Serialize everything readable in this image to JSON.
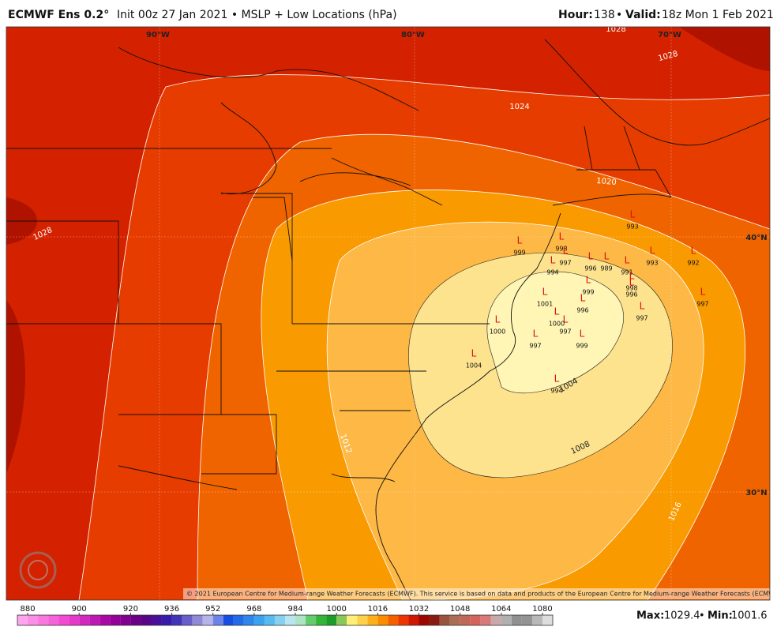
{
  "header": {
    "model": "ECMWF Ens 0.2°",
    "description": "Init 00z 27 Jan 2021 • MSLP + Low Locations (hPa)",
    "hour_label": "Hour:",
    "hour": "138",
    "separator": "•",
    "valid_label": "Valid:",
    "valid": "18z Mon 1 Feb 2021"
  },
  "map": {
    "lon_labels": [
      "90°W",
      "80°W",
      "70°W"
    ],
    "lat_labels": [
      "40°N",
      "30°N"
    ],
    "contour_labels": [
      "1028",
      "1028",
      "1024",
      "1020",
      "1016",
      "1012",
      "1008",
      "1004",
      "1028"
    ],
    "low_symbol": "L",
    "low_values": [
      993,
      998,
      997,
      996,
      989,
      991,
      993,
      992,
      997,
      998,
      996,
      997,
      996,
      997,
      999,
      997,
      1004,
      994,
      999,
      994,
      999,
      1000,
      1001,
      1000
    ],
    "copyright": "© 2021 European Centre for Medium-range Weather Forecasts (ECMWF). This service is based on data and products of the European Centre for Medium-range Weather Forecasts (ECMWF)."
  },
  "colorbar": {
    "ticks": [
      880,
      900,
      920,
      936,
      952,
      968,
      984,
      1000,
      1016,
      1032,
      1048,
      1064,
      1080
    ]
  },
  "footer": {
    "max_label": "Max:",
    "max": "1029.4",
    "separator": "•",
    "min_label": "Min:",
    "min": "1001.6"
  }
}
